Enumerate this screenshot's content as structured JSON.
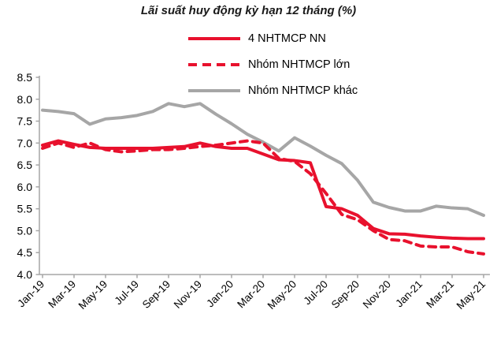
{
  "chart_data": {
    "type": "line",
    "title": "Lãi suất huy động kỳ hạn 12 tháng (%)",
    "categories": [
      "Jan-19",
      "Feb-19",
      "Mar-19",
      "Apr-19",
      "May-19",
      "Jun-19",
      "Jul-19",
      "Aug-19",
      "Sep-19",
      "Oct-19",
      "Nov-19",
      "Dec-19",
      "Jan-20",
      "Feb-20",
      "Mar-20",
      "Apr-20",
      "May-20",
      "Jun-20",
      "Jul-20",
      "Aug-20",
      "Sep-20",
      "Oct-20",
      "Nov-20",
      "Dec-20",
      "Jan-21",
      "Feb-21",
      "Mar-21",
      "Apr-21",
      "May-21"
    ],
    "x_tick_every": 2,
    "series": [
      {
        "name": "4 NHTMCP NN",
        "color": "#e8112d",
        "dash": false,
        "width": 4,
        "values": [
          6.95,
          7.05,
          6.97,
          6.9,
          6.88,
          6.88,
          6.88,
          6.88,
          6.9,
          6.92,
          7.0,
          6.92,
          6.88,
          6.88,
          6.75,
          6.62,
          6.6,
          6.55,
          5.55,
          5.5,
          5.35,
          5.05,
          4.93,
          4.92,
          4.88,
          4.85,
          4.83,
          4.82,
          4.82
        ]
      },
      {
        "name": "Nhóm NHTMCP lớn",
        "color": "#e8112d",
        "dash": true,
        "width": 4,
        "values": [
          6.88,
          7.0,
          6.9,
          7.0,
          6.85,
          6.8,
          6.82,
          6.85,
          6.85,
          6.88,
          6.92,
          6.95,
          7.0,
          7.05,
          7.0,
          6.65,
          6.58,
          6.3,
          5.85,
          5.37,
          5.25,
          5.0,
          4.8,
          4.77,
          4.65,
          4.63,
          4.63,
          4.52,
          4.47
        ]
      },
      {
        "name": "Nhóm NHTMCP khác",
        "color": "#a6a6a6",
        "dash": false,
        "width": 4,
        "values": [
          7.75,
          7.72,
          7.67,
          7.43,
          7.55,
          7.58,
          7.63,
          7.72,
          7.9,
          7.83,
          7.9,
          7.66,
          7.44,
          7.2,
          7.02,
          6.82,
          7.12,
          6.93,
          6.72,
          6.53,
          6.15,
          5.65,
          5.53,
          5.45,
          5.45,
          5.56,
          5.52,
          5.5,
          5.35
        ]
      }
    ],
    "ylim": [
      4.0,
      8.5
    ],
    "y_tick_step": 0.5,
    "y_tick_labels": [
      "4.0",
      "4.5",
      "5.0",
      "5.5",
      "6.0",
      "6.5",
      "7.0",
      "7.5",
      "8.0",
      "8.5"
    ],
    "legend_position": "top-center",
    "grid": false,
    "axis_color": "#a6a6a6",
    "text_color": "#000000",
    "title_color": "#1a1a1a"
  }
}
